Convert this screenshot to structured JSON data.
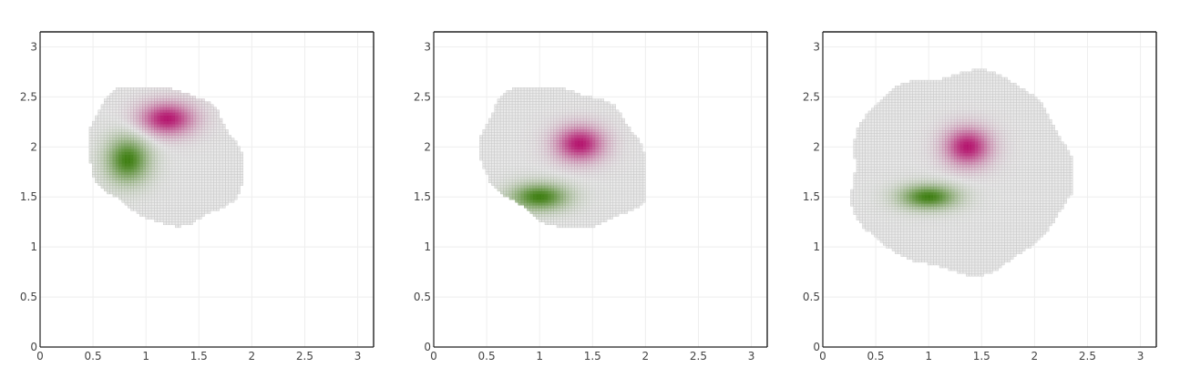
{
  "chart_data": [
    {
      "type": "heatmap",
      "title": "",
      "xlabel": "",
      "ylabel": "",
      "xlim": [
        0,
        3.15
      ],
      "ylim": [
        0,
        3.15
      ],
      "xticks": [
        "0",
        "0.5",
        "1",
        "1.5",
        "2",
        "2.5",
        "3"
      ],
      "yticks": [
        "0",
        "0.5",
        "1",
        "1.5",
        "2",
        "2.5",
        "3"
      ],
      "grid": true,
      "colorscale": {
        "positive": "#b5156e",
        "negative": "#3f7f12",
        "zero": "#c8c8c8"
      },
      "domain": {
        "shape": "rotated-ellipse",
        "center": [
          1.18,
          1.92
        ],
        "rx": 0.78,
        "ry": 0.64,
        "rotation_deg": -35,
        "extent_x": [
          0.45,
          1.95
        ],
        "extent_y": [
          1.15,
          2.68
        ]
      },
      "blobs": [
        {
          "sign": "positive",
          "center": [
            1.2,
            2.28
          ],
          "sx": 0.19,
          "sy": 0.12,
          "amplitude": 1.0
        },
        {
          "sign": "negative",
          "center": [
            0.83,
            1.87
          ],
          "sx": 0.15,
          "sy": 0.17,
          "amplitude": 1.0
        }
      ]
    },
    {
      "type": "heatmap",
      "title": "",
      "xlabel": "",
      "ylabel": "",
      "xlim": [
        0,
        3.15
      ],
      "ylim": [
        0,
        3.15
      ],
      "xticks": [
        "0",
        "0.5",
        "1",
        "1.5",
        "2",
        "2.5",
        "3"
      ],
      "yticks": [
        "0",
        "0.5",
        "1",
        "1.5",
        "2",
        "2.5",
        "3"
      ],
      "grid": true,
      "colorscale": {
        "positive": "#b5156e",
        "negative": "#3f7f12",
        "zero": "#c8c8c8"
      },
      "domain": {
        "shape": "rotated-ellipse",
        "center": [
          1.23,
          1.9
        ],
        "rx": 0.84,
        "ry": 0.66,
        "rotation_deg": -30,
        "extent_x": [
          0.42,
          2.0
        ],
        "extent_y": [
          1.15,
          2.68
        ]
      },
      "blobs": [
        {
          "sign": "positive",
          "center": [
            1.38,
            2.03
          ],
          "sx": 0.17,
          "sy": 0.13,
          "amplitude": 1.0
        },
        {
          "sign": "negative",
          "center": [
            1.0,
            1.5
          ],
          "sx": 0.2,
          "sy": 0.1,
          "amplitude": 1.0
        }
      ]
    },
    {
      "type": "heatmap",
      "title": "",
      "xlabel": "",
      "ylabel": "",
      "xlim": [
        0,
        3.15
      ],
      "ylim": [
        0,
        3.15
      ],
      "xticks": [
        "0",
        "0.5",
        "1",
        "1.5",
        "2",
        "2.5",
        "3"
      ],
      "yticks": [
        "0",
        "0.5",
        "1",
        "1.5",
        "2",
        "2.5",
        "3"
      ],
      "grid": true,
      "colorscale": {
        "positive": "#b5156e",
        "negative": "#3f7f12",
        "zero": "#c8c8c8"
      },
      "domain": {
        "shape": "ellipse",
        "center": [
          1.3,
          1.75
        ],
        "rx": 1.05,
        "ry": 1.0,
        "rotation_deg": 0,
        "extent_x": [
          0.22,
          2.37
        ],
        "extent_y": [
          0.72,
          2.78
        ]
      },
      "blobs": [
        {
          "sign": "positive",
          "center": [
            1.37,
            2.0
          ],
          "sx": 0.16,
          "sy": 0.14,
          "amplitude": 1.0
        },
        {
          "sign": "negative",
          "center": [
            1.0,
            1.5
          ],
          "sx": 0.2,
          "sy": 0.09,
          "amplitude": 1.0
        }
      ]
    }
  ]
}
